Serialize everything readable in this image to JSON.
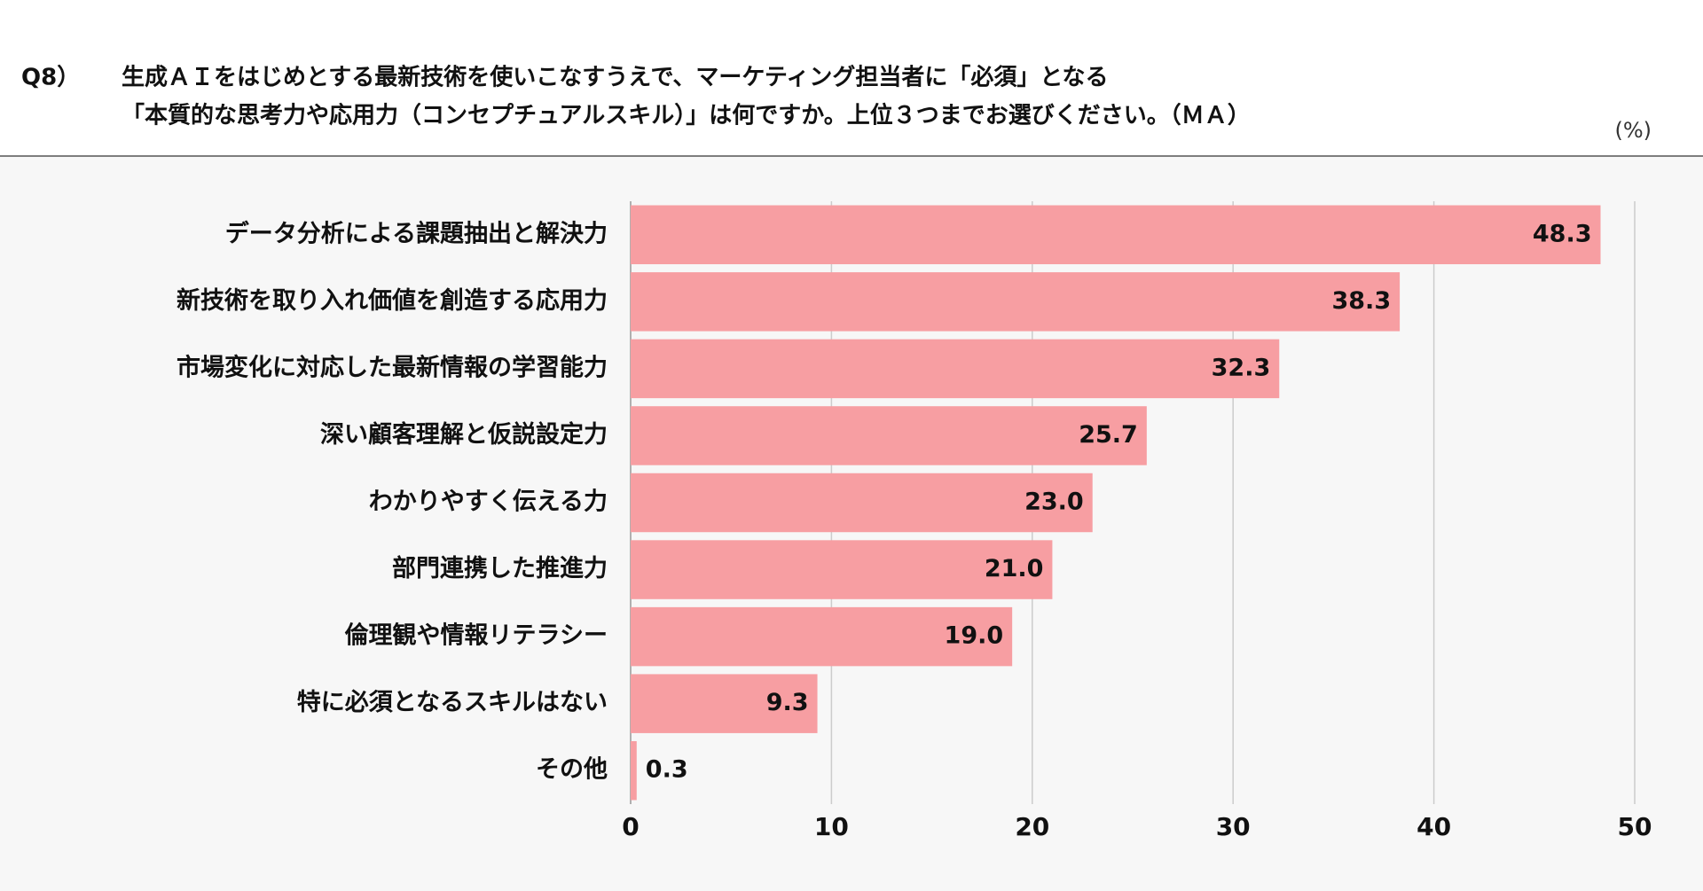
{
  "chart_data": {
    "type": "hbar",
    "question_no": "Q8）",
    "title_lines": [
      "生成ＡＩをはじめとする最新技術を使いこなすうえで、マーケティング担当者に「必須」となる",
      "「本質的な思考力や応用力（コンセプチュアルスキル）」は何ですか。上位３つまでお選びください。（ＭＡ）"
    ],
    "unit": "(%)",
    "categories": [
      "データ分析による課題抽出と解決力",
      "新技術を取り入れ価値を創造する応用力",
      "市場変化に対応した最新情報の学習能力",
      "深い顧客理解と仮説設定力",
      "わかりやすく伝える力",
      "部門連携した推進力",
      "倫理観や情報リテラシー",
      "特に必須となるスキルはない",
      "その他"
    ],
    "values": [
      48.3,
      38.3,
      32.3,
      25.7,
      23.0,
      21.0,
      19.0,
      9.3,
      0.3
    ],
    "value_labels": [
      "48.3",
      "38.3",
      "32.3",
      "25.7",
      "23.0",
      "21.0",
      "19.0",
      "9.3",
      "0.3"
    ],
    "color": "#f79ea2",
    "xlim": [
      0,
      50
    ],
    "xticks": [
      0,
      10,
      20,
      30,
      40,
      50
    ],
    "grid": true
  }
}
